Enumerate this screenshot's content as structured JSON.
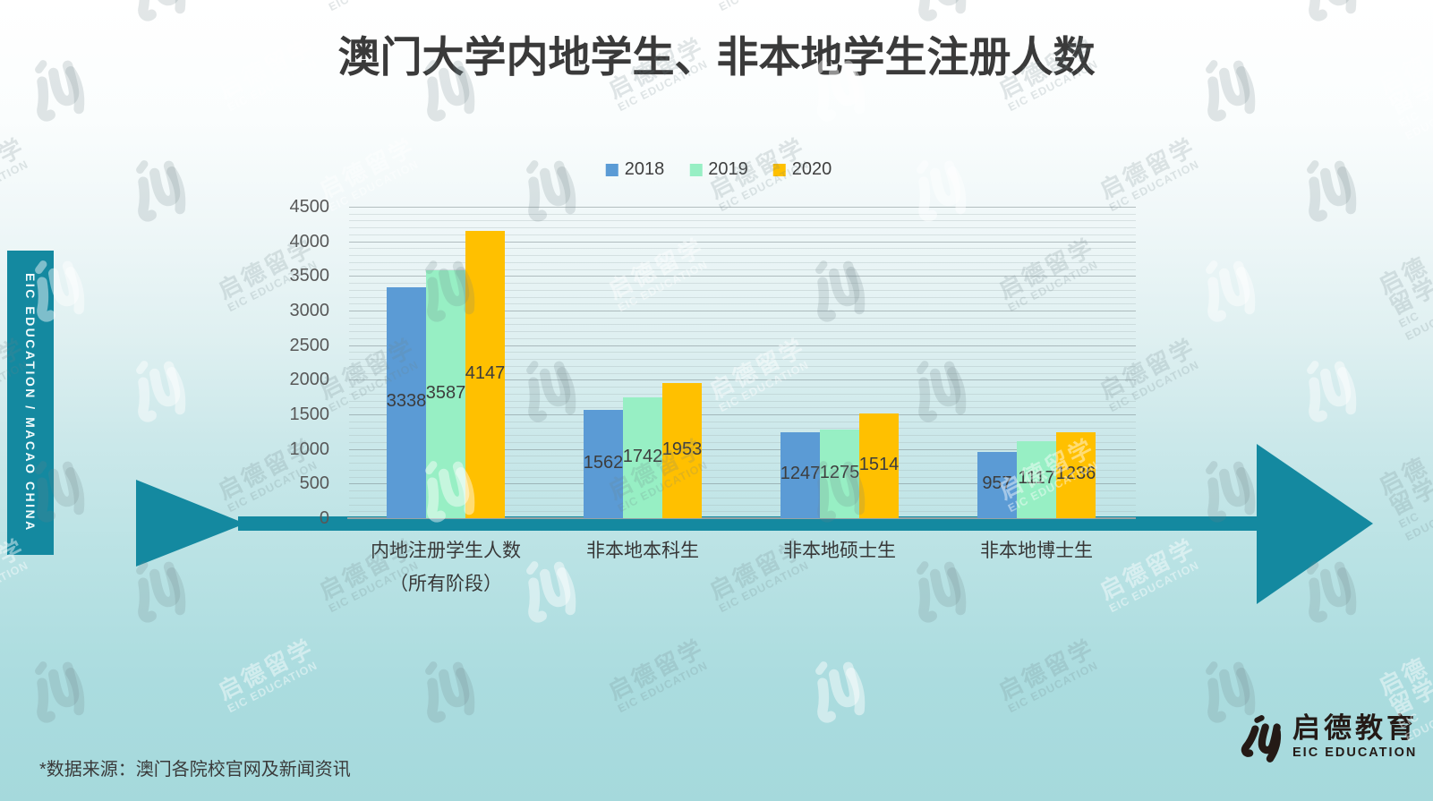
{
  "page": {
    "title": "澳门大学内地学生、非本地学生注册人数",
    "sidebar_label": "EIC EDUCATION  /  MACAO CHINA",
    "source_note": "*数据来源：澳门各院校官网及新闻资讯",
    "watermark": {
      "line_cn": "启德留学",
      "line_en": "EIC EDUCATION",
      "mark_name": "eic-iu-monogram"
    },
    "footer_logo": {
      "name_cn": "启德教育",
      "name_en": "EIC EDUCATION"
    }
  },
  "chart_data": {
    "type": "bar",
    "title": "澳门大学内地学生、非本地学生注册人数",
    "categories": [
      "内地注册学生人数",
      "非本地本科生",
      "非本地硕士生",
      "非本地博士生"
    ],
    "category_sublabels": [
      "（所有阶段）",
      "",
      "",
      ""
    ],
    "series": [
      {
        "name": "2018",
        "color": "#5B9BD5",
        "values": [
          3338,
          1562,
          1247,
          957
        ]
      },
      {
        "name": "2019",
        "color": "#97EFC4",
        "values": [
          3587,
          1742,
          1275,
          1117
        ]
      },
      {
        "name": "2020",
        "color": "#FFC000",
        "values": [
          4147,
          1953,
          1514,
          1236
        ]
      }
    ],
    "xlabel": "",
    "ylabel": "",
    "ylim": [
      0,
      4500
    ],
    "ytick_step": 500,
    "y_minor_step": 100,
    "grid": true,
    "legend_position": "top-center",
    "data_labels": "centered-in-bar"
  },
  "colors": {
    "accent_teal": "#1489A0",
    "axis_line": "#97a3a5",
    "major_grid": "rgba(118,132,136,0.50)",
    "minor_grid": "rgba(160,174,177,0.30)",
    "title_text": "#3a3a3a",
    "watermark_gray": "rgba(110,128,133,0.20)",
    "watermark_white": "rgba(255,255,255,0.45)"
  }
}
